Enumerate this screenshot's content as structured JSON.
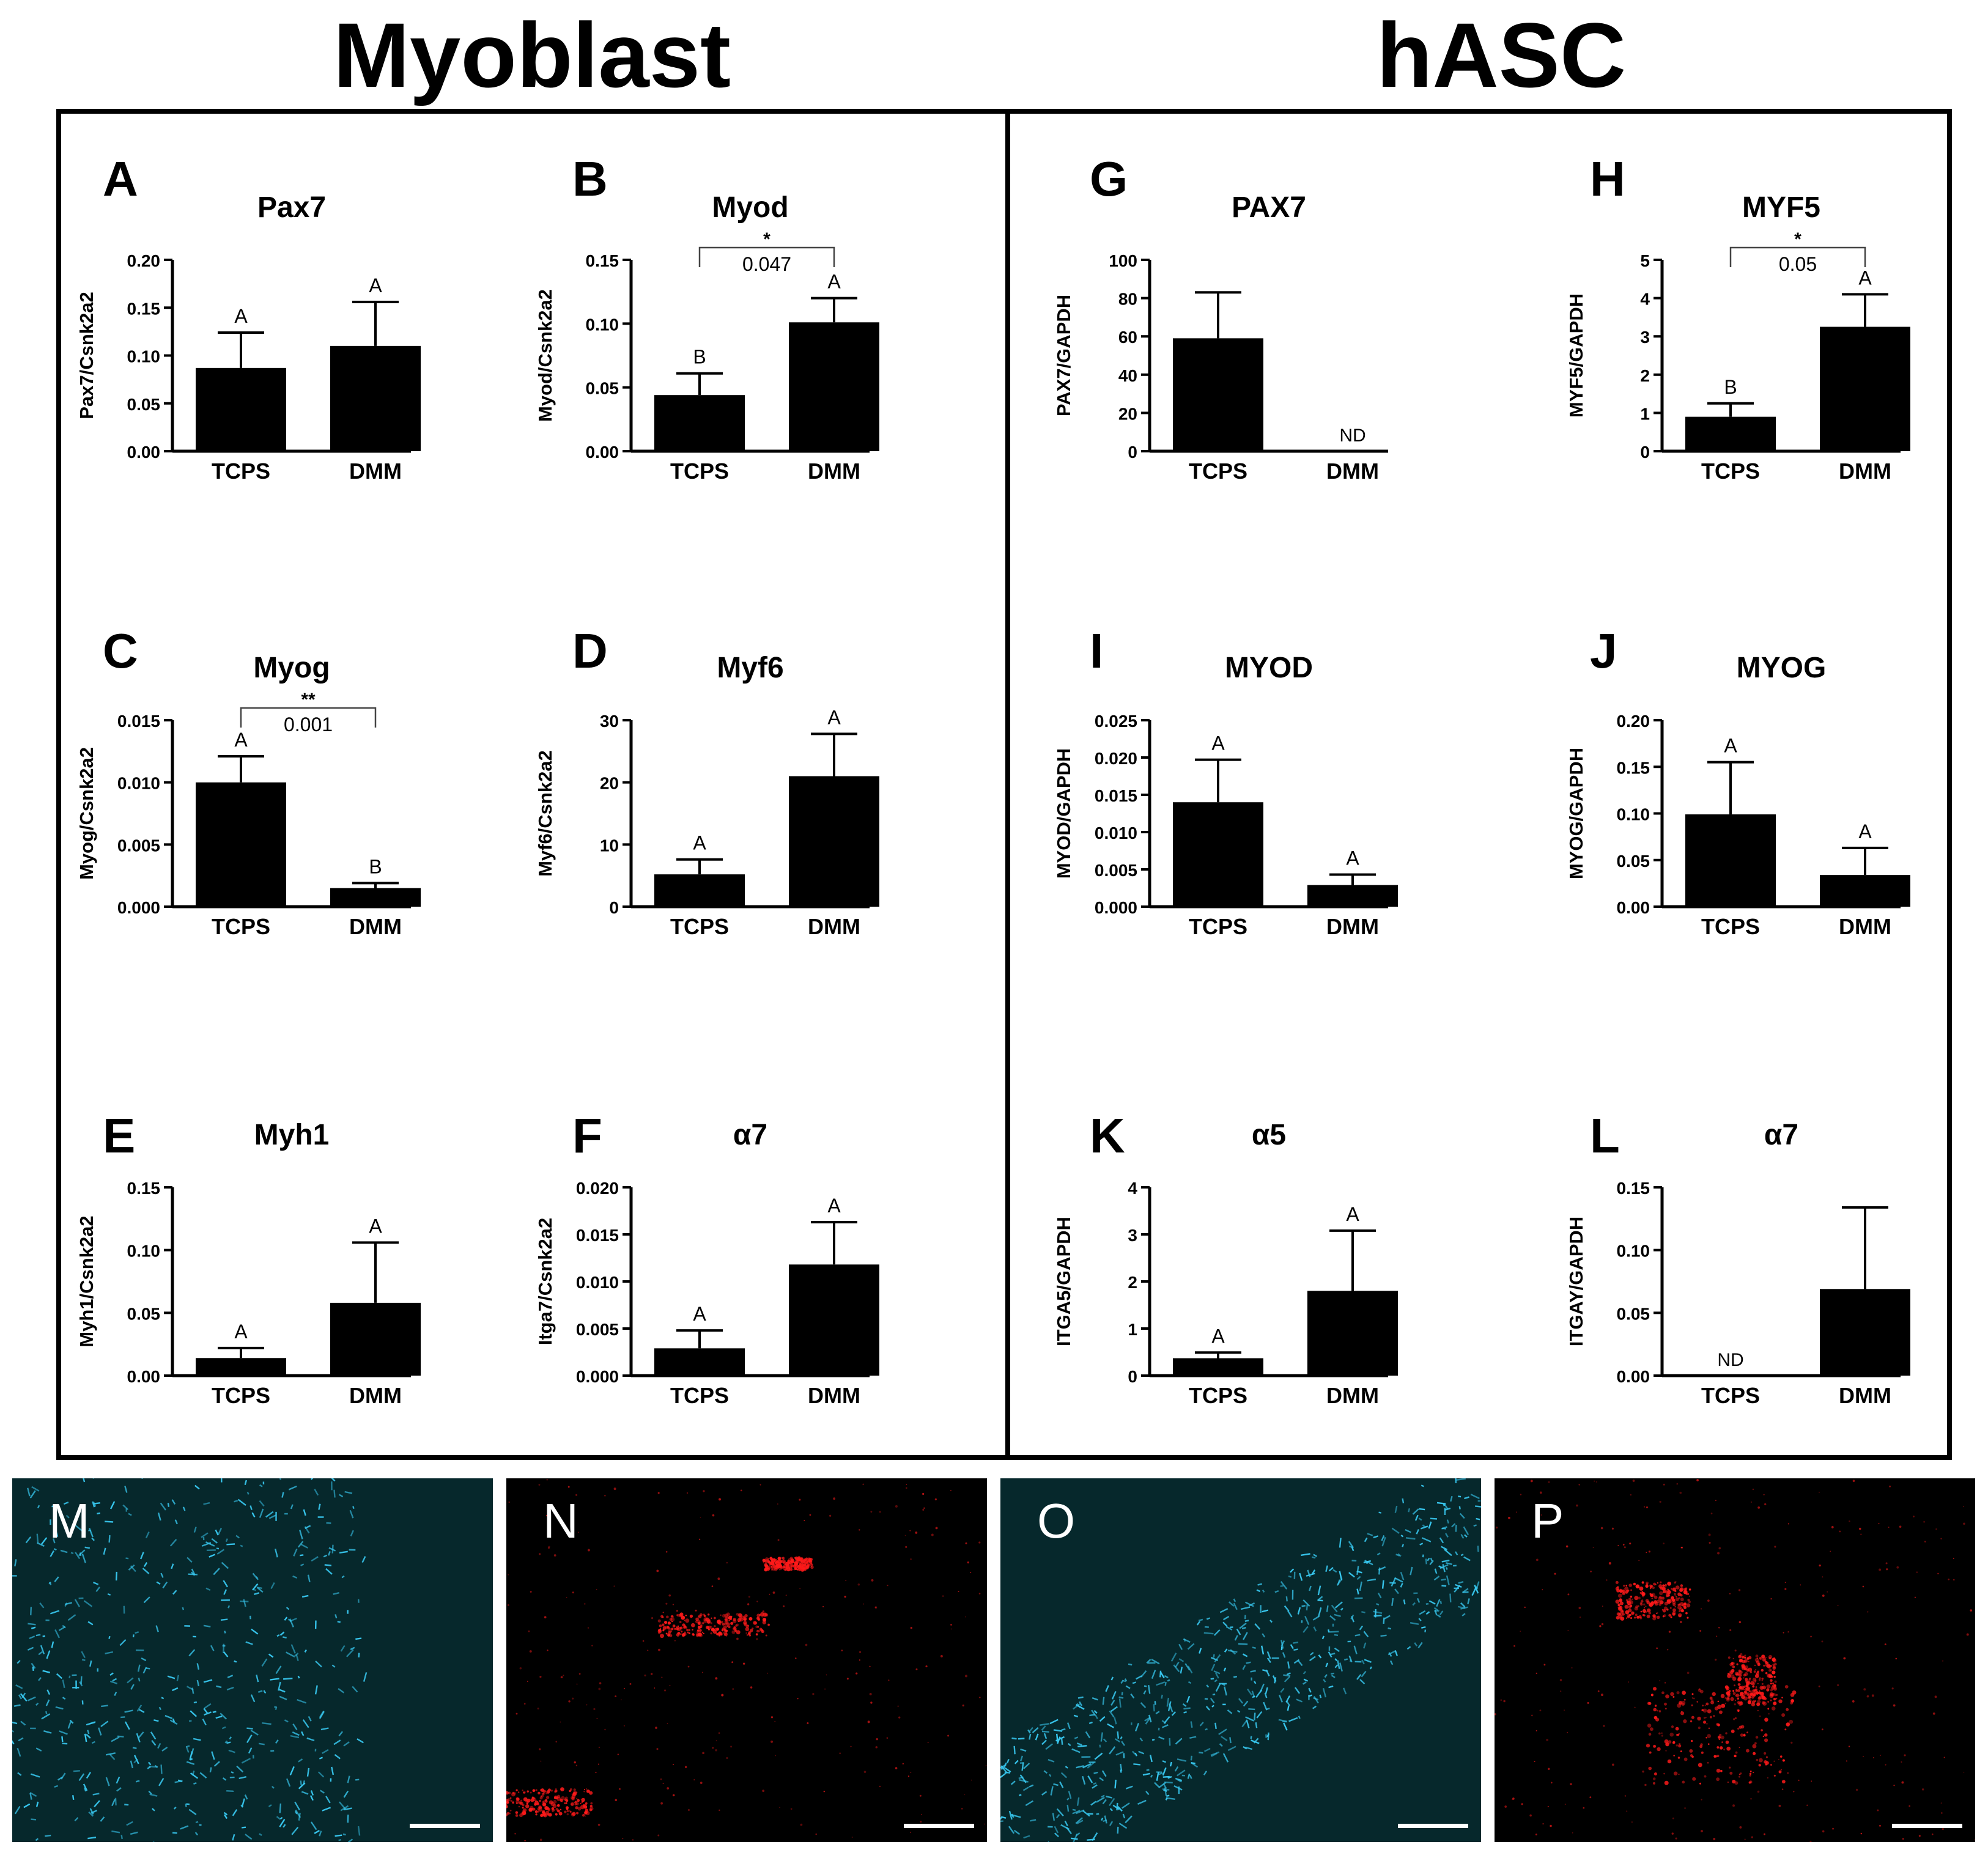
{
  "headers": {
    "left": "Myoblast",
    "right": "hASC"
  },
  "chart_data": [
    {
      "id": "A",
      "type": "bar",
      "title": "Pax7",
      "ylabel": "Pax7/Csnk2a2",
      "categories": [
        "TCPS",
        "DMM"
      ],
      "values": [
        0.087,
        0.11
      ],
      "errors": [
        0.037,
        0.046
      ],
      "ylim": [
        0,
        0.2
      ],
      "yticks": [
        "0.00",
        "0.05",
        "0.10",
        "0.15",
        "0.20"
      ],
      "letters": [
        "A",
        "A"
      ],
      "nd": []
    },
    {
      "id": "B",
      "type": "bar",
      "title": "Myod",
      "ylabel": "Myod/Csnk2a2",
      "categories": [
        "TCPS",
        "DMM"
      ],
      "values": [
        0.044,
        0.101
      ],
      "errors": [
        0.017,
        0.019
      ],
      "ylim": [
        0,
        0.15
      ],
      "yticks": [
        "0.00",
        "0.05",
        "0.10",
        "0.15"
      ],
      "letters": [
        "B",
        "A"
      ],
      "nd": [],
      "sig": {
        "stars": "*",
        "p": "0.047"
      }
    },
    {
      "id": "C",
      "type": "bar",
      "title": "Myog",
      "ylabel": "Myog/Csnk2a2",
      "categories": [
        "TCPS",
        "DMM"
      ],
      "values": [
        0.01,
        0.0015
      ],
      "errors": [
        0.0021,
        0.0004
      ],
      "ylim": [
        0,
        0.015
      ],
      "yticks": [
        "0.000",
        "0.005",
        "0.010",
        "0.015"
      ],
      "letters": [
        "A",
        "B"
      ],
      "nd": [],
      "sig": {
        "stars": "**",
        "p": "0.001"
      }
    },
    {
      "id": "D",
      "type": "bar",
      "title": "Myf6",
      "ylabel": "Myf6/Csnk2a2",
      "categories": [
        "TCPS",
        "DMM"
      ],
      "values": [
        5.2,
        21.0
      ],
      "errors": [
        2.4,
        6.8
      ],
      "ylim": [
        0,
        30
      ],
      "yticks": [
        "0",
        "10",
        "20",
        "30"
      ],
      "letters": [
        "A",
        "A"
      ],
      "nd": []
    },
    {
      "id": "E",
      "type": "bar",
      "title": "Myh1",
      "ylabel": "Myh1/Csnk2a2",
      "categories": [
        "TCPS",
        "DMM"
      ],
      "values": [
        0.014,
        0.058
      ],
      "errors": [
        0.008,
        0.048
      ],
      "ylim": [
        0,
        0.15
      ],
      "yticks": [
        "0.00",
        "0.05",
        "0.10",
        "0.15"
      ],
      "letters": [
        "A",
        "A"
      ],
      "nd": []
    },
    {
      "id": "F",
      "type": "bar",
      "title": "α7",
      "ylabel": "Itga7/Csnk2a2",
      "categories": [
        "TCPS",
        "DMM"
      ],
      "values": [
        0.0029,
        0.0118
      ],
      "errors": [
        0.0019,
        0.0045
      ],
      "ylim": [
        0,
        0.02
      ],
      "yticks": [
        "0.000",
        "0.005",
        "0.010",
        "0.015",
        "0.020"
      ],
      "letters": [
        "A",
        "A"
      ],
      "nd": []
    },
    {
      "id": "G",
      "type": "bar",
      "title": "PAX7",
      "ylabel": "PAX7/GAPDH",
      "categories": [
        "TCPS",
        "DMM"
      ],
      "values": [
        59,
        0
      ],
      "errors": [
        24,
        0
      ],
      "ylim": [
        0,
        100
      ],
      "yticks": [
        "0",
        "20",
        "40",
        "60",
        "80",
        "100"
      ],
      "letters": [
        "",
        ""
      ],
      "nd": [
        1
      ]
    },
    {
      "id": "H",
      "type": "bar",
      "title": "MYF5",
      "ylabel": "MYF5/GAPDH",
      "categories": [
        "TCPS",
        "DMM"
      ],
      "values": [
        0.9,
        3.25
      ],
      "errors": [
        0.35,
        0.85
      ],
      "ylim": [
        0,
        5
      ],
      "yticks": [
        "0",
        "1",
        "2",
        "3",
        "4",
        "5"
      ],
      "letters": [
        "B",
        "A"
      ],
      "nd": [],
      "sig": {
        "stars": "*",
        "p": "0.05"
      }
    },
    {
      "id": "I",
      "type": "bar",
      "title": "MYOD",
      "ylabel": "MYOD/GAPDH",
      "categories": [
        "TCPS",
        "DMM"
      ],
      "values": [
        0.014,
        0.0029
      ],
      "errors": [
        0.0057,
        0.0014
      ],
      "ylim": [
        0,
        0.025
      ],
      "yticks": [
        "0.000",
        "0.005",
        "0.010",
        "0.015",
        "0.020",
        "0.025"
      ],
      "letters": [
        "A",
        "A"
      ],
      "nd": []
    },
    {
      "id": "J",
      "type": "bar",
      "title": "MYOG",
      "ylabel": "MYOG/GAPDH",
      "categories": [
        "TCPS",
        "DMM"
      ],
      "values": [
        0.099,
        0.034
      ],
      "errors": [
        0.056,
        0.029
      ],
      "ylim": [
        0,
        0.2
      ],
      "yticks": [
        "0.00",
        "0.05",
        "0.10",
        "0.15",
        "0.20"
      ],
      "letters": [
        "A",
        "A"
      ],
      "nd": []
    },
    {
      "id": "K",
      "type": "bar",
      "title": "α5",
      "ylabel": "ITGA5/GAPDH",
      "categories": [
        "TCPS",
        "DMM"
      ],
      "values": [
        0.37,
        1.8
      ],
      "errors": [
        0.12,
        1.28
      ],
      "ylim": [
        0,
        4
      ],
      "yticks": [
        "0",
        "1",
        "2",
        "3",
        "4"
      ],
      "letters": [
        "A",
        "A"
      ],
      "nd": []
    },
    {
      "id": "L",
      "type": "bar",
      "title": "α7",
      "ylabel": "ITGAY/GAPDH",
      "categories": [
        "TCPS",
        "DMM"
      ],
      "values": [
        0,
        0.069
      ],
      "errors": [
        0,
        0.065
      ],
      "ylim": [
        0,
        0.15
      ],
      "yticks": [
        "0.00",
        "0.05",
        "0.10",
        "0.15"
      ],
      "letters": [
        "",
        ""
      ],
      "nd": [
        0
      ]
    }
  ],
  "nd_label": "ND",
  "microscopy": [
    {
      "letter": "M",
      "stain": "cyan"
    },
    {
      "letter": "N",
      "stain": "red"
    },
    {
      "letter": "O",
      "stain": "cyan"
    },
    {
      "letter": "P",
      "stain": "red"
    }
  ],
  "colors": {
    "bar": "#000000",
    "cyan_stain": "#38c8f0",
    "red_stain": "#ff1a1a",
    "background": "#ffffff"
  }
}
